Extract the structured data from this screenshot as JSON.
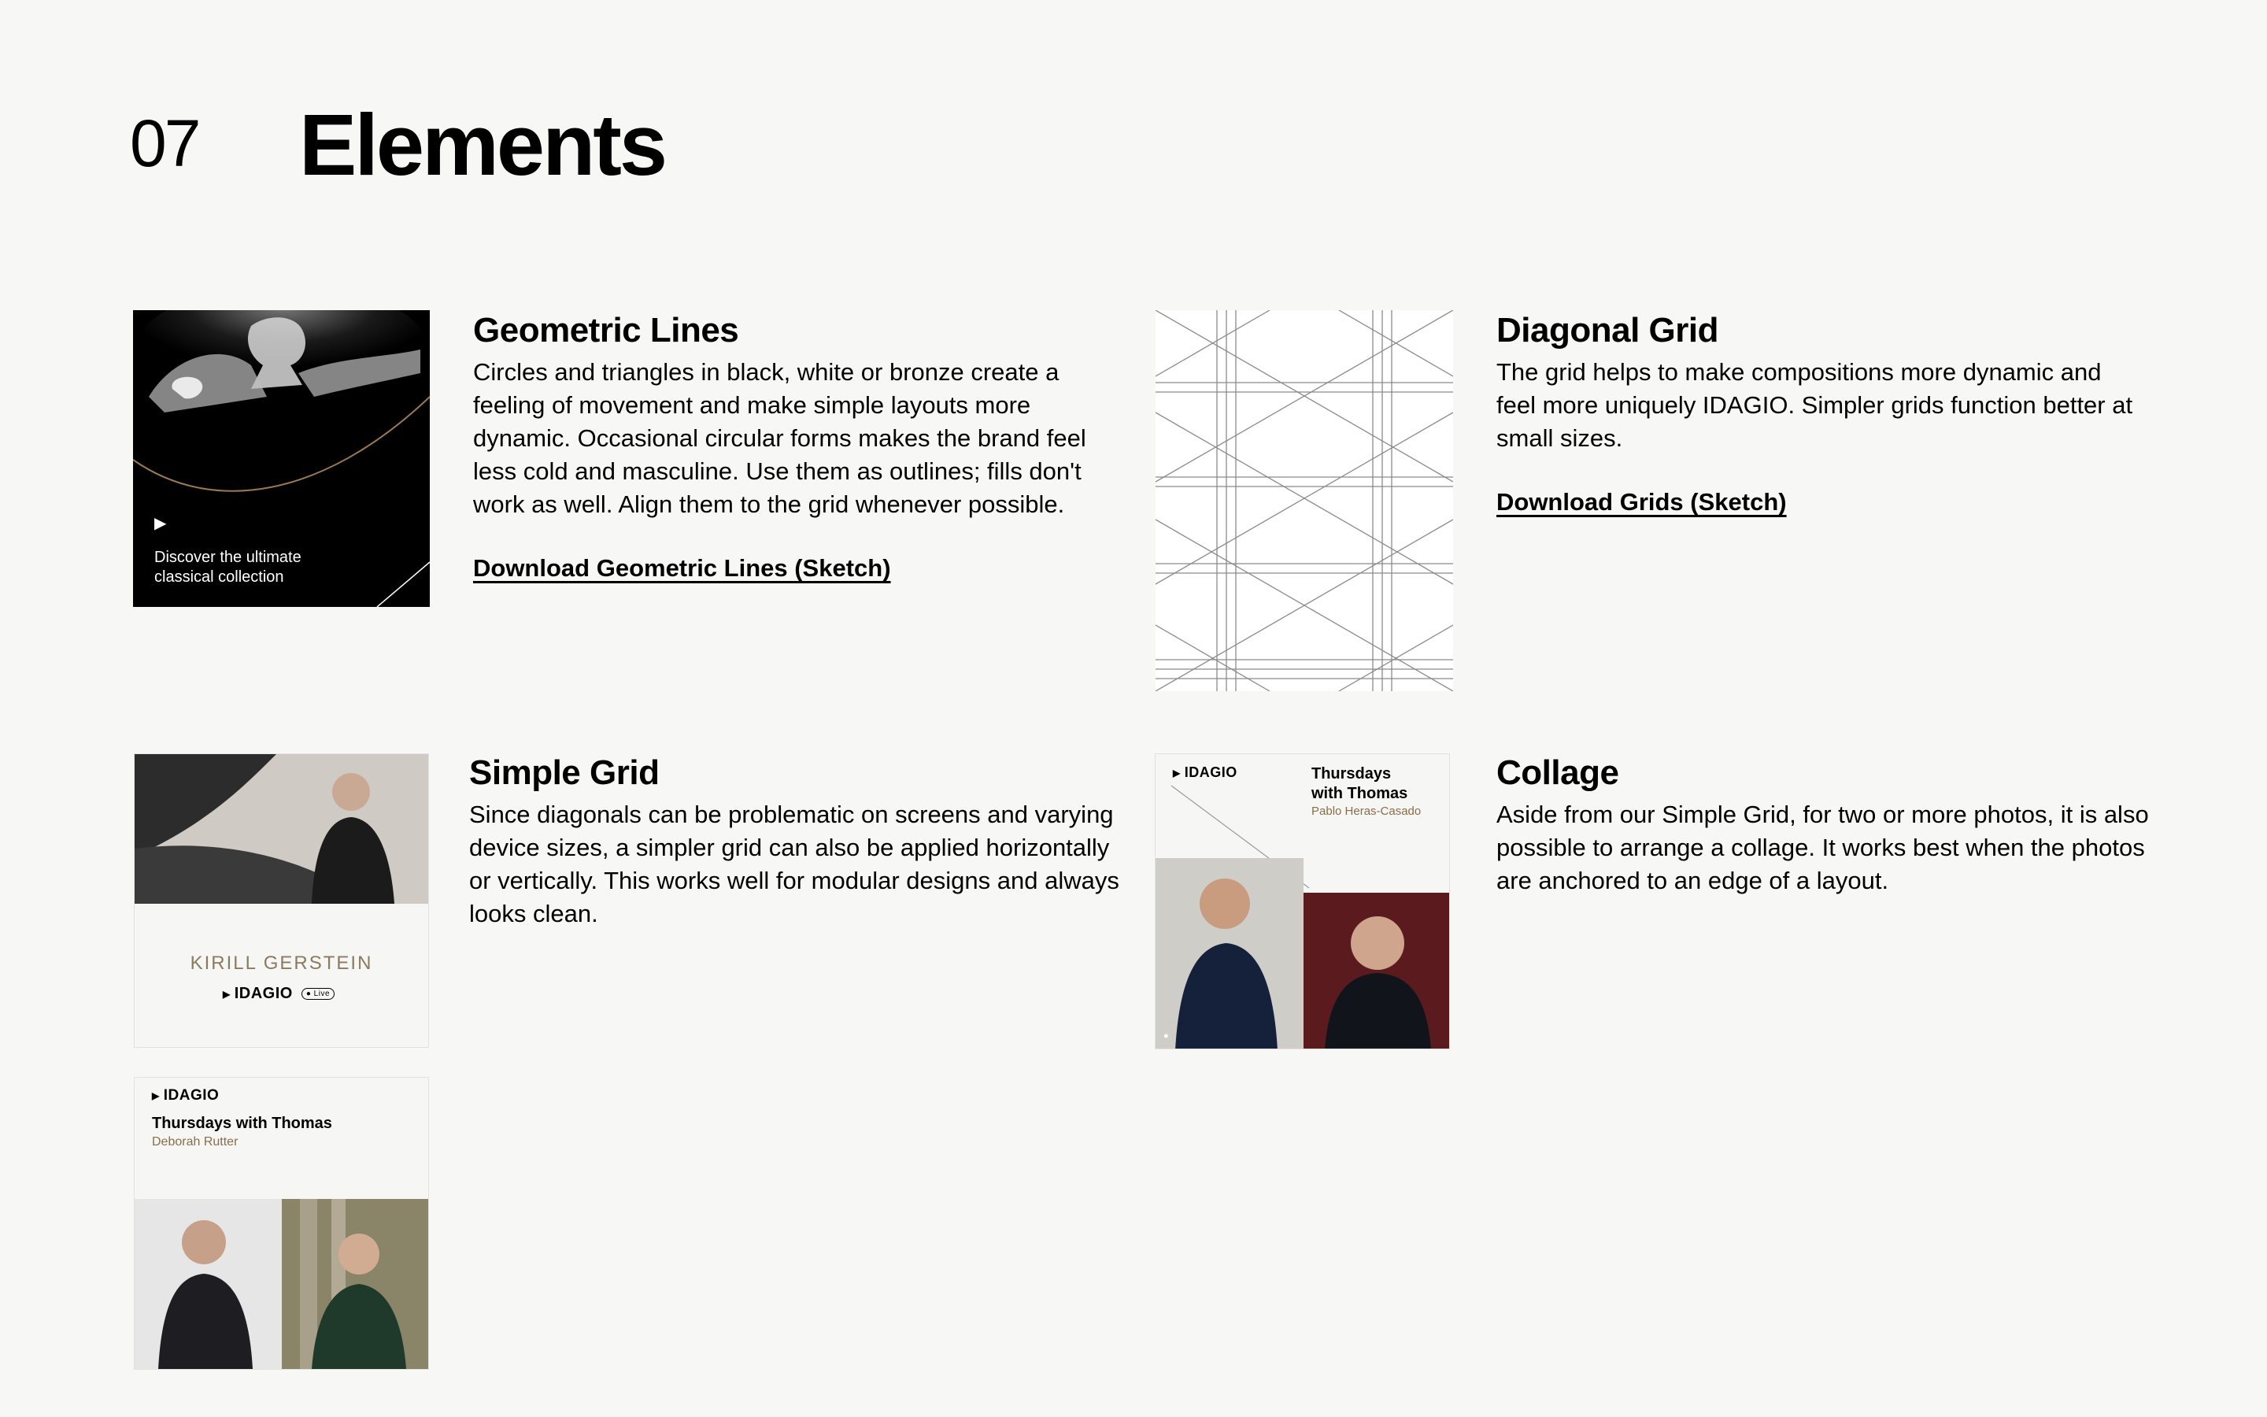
{
  "section": {
    "number": "07",
    "title": "Elements"
  },
  "cards": {
    "geometric": {
      "title": "Geometric Lines",
      "body": "Circles and triangles in black, white or bronze create a feeling of movement and make simple layouts more dynamic. Occasional circular forms makes the brand feel less cold and masculine. Use them as outlines; fills don't work as well. Align them to the grid whenever possible.",
      "link": "Download Geometric Lines (Sketch)",
      "tile_text_line1": "Discover the ultimate",
      "tile_text_line2": "classical collection"
    },
    "diagonal": {
      "title": "Diagonal Grid",
      "body": "The grid helps to make compositions more dynamic and feel more uniquely IDAGIO. Simpler grids function better at small sizes.",
      "link": "Download Grids (Sketch)"
    },
    "simple": {
      "title": "Simple Grid",
      "body": "Since diagonals can be problematic on screens and varying device sizes, a simpler grid can also be applied horizontally or vertically. This works well for modular designs and always looks clean.",
      "tile_name": "KIRILL GERSTEIN",
      "tile_logo": "IDAGIO",
      "tile_badge": "● Live",
      "tile2_logo": "IDAGIO",
      "tile2_title": "Thursdays with Thomas",
      "tile2_subtitle": "Deborah Rutter"
    },
    "collage": {
      "title": "Collage",
      "body": "Aside from our Simple Grid, for two or more photos, it is also possible to arrange a collage. It works best when the photos are anchored to an edge of a layout.",
      "tile_logo": "IDAGIO",
      "tile_title_line1": "Thursdays",
      "tile_title_line2": "with Thomas",
      "tile_subtitle": "Pablo Heras-Casado"
    }
  },
  "colors": {
    "background": "#f7f7f5",
    "bronze": "#8a6d4a",
    "text": "#000000"
  }
}
